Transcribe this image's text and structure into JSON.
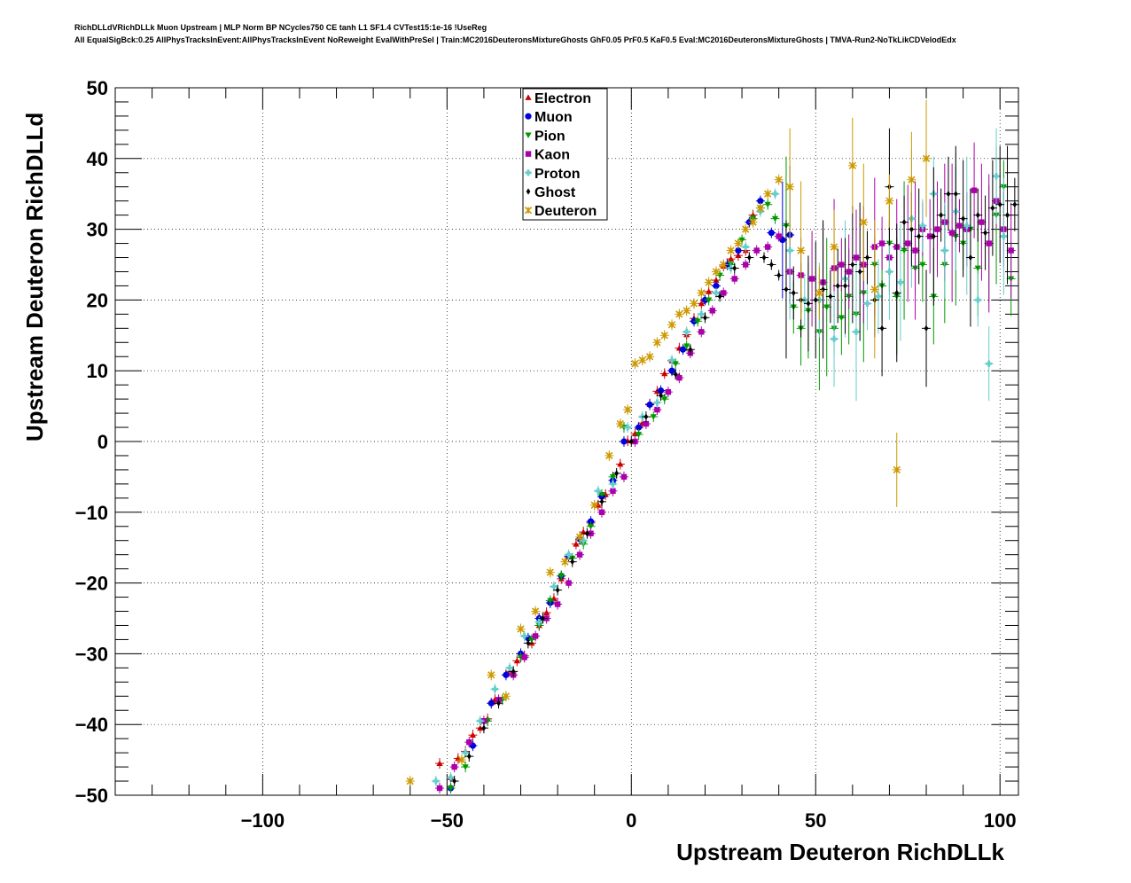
{
  "header": {
    "title_line1": "RichDLLdVRichDLLk Muon Upstream | MLP Norm BP NCycles750 CE tanh L1 SF1.4 CVTest15:1e-16 !UseReg",
    "title_line2": "All EqualSigBck:0.25 AllPhysTracksInEvent:AllPhysTracksInEvent NoReweight EvalWithPreSel | Train:MC2016DeuteronsMixtureGhosts GhF0.05 PrF0.5 KaF0.5 Eval:MC2016DeuteronsMixtureGhosts | TMVA-Run2-NoTkLikCDVelodEdx"
  },
  "chart_data": {
    "type": "scatter",
    "title": "",
    "xlabel": "Upstream Deuteron RichDLLk",
    "ylabel": "Upstream Deuteron RichDLLd",
    "xlim": [
      -140,
      105
    ],
    "ylim": [
      -50,
      50
    ],
    "xticks": [
      -100,
      -50,
      0,
      50,
      100
    ],
    "yticks": [
      -50,
      -40,
      -30,
      -20,
      -10,
      0,
      10,
      20,
      30,
      40,
      50
    ],
    "xtick_labels": [
      "−100",
      "−50",
      "0",
      "50",
      "100"
    ],
    "ytick_labels": [
      "−50",
      "−40",
      "−30",
      "−20",
      "−10",
      "0",
      "10",
      "20",
      "30",
      "40",
      "50"
    ],
    "grid": true,
    "legend_position": "top-center",
    "series": [
      {
        "name": "Electron",
        "color": "#cc0000",
        "marker": "triangle-up",
        "x": [
          -52,
          -49,
          -47,
          -45,
          -43,
          -41,
          -39,
          -37,
          -33,
          -31,
          -29,
          -27,
          -25,
          -23,
          -21,
          -19,
          -17,
          -15,
          -13,
          -11,
          -9,
          -7,
          -5,
          -3,
          -1,
          1,
          3,
          5,
          7,
          9,
          11,
          13,
          15,
          17,
          19,
          21,
          23,
          25,
          27,
          29,
          31,
          33
        ],
        "y": [
          -45.5,
          -47.5,
          -44.8,
          -43.8,
          -41.5,
          -40.5,
          -39.2,
          -36.5,
          -32.5,
          -31.0,
          -30.3,
          -28.5,
          -26.0,
          -24.2,
          -22.2,
          -19.4,
          -16.3,
          -14.5,
          -12.8,
          -11.5,
          -9.0,
          -7.5,
          -5.5,
          -3.2,
          0.1,
          1.1,
          2.6,
          5.3,
          7.1,
          9.6,
          11.4,
          13.2,
          15.1,
          17.4,
          19.5,
          21.2,
          22.8,
          24.8,
          25.8,
          26.3,
          27.0,
          32.0
        ]
      },
      {
        "name": "Muon",
        "color": "#0000dd",
        "marker": "circle",
        "x": [
          -49,
          -43,
          -38,
          -34,
          -30,
          -28,
          -25,
          -22,
          -19,
          -17,
          -14,
          -11,
          -8,
          -5,
          -2,
          2,
          5,
          8,
          11,
          14,
          17,
          20,
          23,
          26,
          29,
          32,
          35,
          38,
          41,
          43
        ],
        "y": [
          -49.0,
          -43.0,
          -37.0,
          -33.0,
          -30.0,
          -27.8,
          -25.0,
          -22.8,
          -19.0,
          -16.2,
          -13.8,
          -11.3,
          -7.8,
          -5.5,
          0.0,
          2.0,
          5.2,
          7.2,
          10.0,
          13.0,
          17.0,
          20.0,
          22.0,
          25.0,
          27.0,
          31.0,
          34.0,
          29.5,
          28.5,
          29.2
        ]
      },
      {
        "name": "Pion",
        "color": "#009900",
        "marker": "triangle-down",
        "x": [
          -49,
          -45,
          -39,
          -35,
          -30,
          -27,
          -25,
          -22,
          -19,
          -16,
          -13,
          -11,
          -8,
          -5,
          -2,
          2,
          6,
          9,
          12,
          15,
          18,
          21,
          24,
          27,
          30,
          33,
          35,
          37,
          39,
          42,
          44,
          46,
          48,
          51,
          53,
          55,
          57,
          59,
          61,
          63,
          66,
          68,
          70,
          72,
          74,
          77,
          79,
          82,
          85,
          88,
          90,
          92,
          94,
          97,
          99,
          101,
          103
        ],
        "y": [
          -49.0,
          -46.0,
          -39.5,
          -36.5,
          -30.5,
          -28.0,
          -26.0,
          -22.5,
          -19.0,
          -16.5,
          -14.5,
          -12.0,
          -7.5,
          -5.0,
          2.0,
          1.0,
          3.5,
          6.0,
          11.0,
          13.5,
          17.0,
          20.0,
          23.5,
          25.0,
          28.5,
          31.5,
          33.0,
          33.5,
          31.5,
          30.5,
          19.0,
          16.0,
          18.5,
          15.5,
          19.0,
          16.0,
          17.5,
          20.5,
          18.0,
          21.0,
          25.0,
          22.0,
          28.0,
          20.5,
          27.0,
          24.5,
          25.0,
          20.5,
          25.0,
          29.0,
          28.0,
          30.0,
          24.5,
          28.0,
          32.0,
          36.0,
          23.0
        ]
      },
      {
        "name": "Kaon",
        "color": "#aa00aa",
        "marker": "square",
        "x": [
          -52,
          -48,
          -44,
          -40,
          -36,
          -32,
          -29,
          -26,
          -23,
          -20,
          -17,
          -14,
          -11,
          -8,
          -5,
          -2,
          1,
          4,
          7,
          10,
          13,
          16,
          19,
          22,
          25,
          28,
          31,
          34,
          37,
          40,
          43,
          46,
          49,
          52,
          55,
          57,
          59,
          61,
          63,
          66,
          68,
          70,
          72,
          75,
          77,
          79,
          81,
          83,
          85,
          87,
          89,
          91,
          93,
          95,
          97,
          99,
          101,
          103
        ],
        "y": [
          -49.0,
          -46.0,
          -42.5,
          -39.5,
          -36.5,
          -33.0,
          -30.5,
          -27.5,
          -25.0,
          -23.0,
          -20.0,
          -16.0,
          -13.0,
          -10.0,
          -7.0,
          -5.0,
          0.0,
          2.5,
          4.5,
          7.0,
          9.0,
          12.5,
          15.5,
          18.5,
          21.0,
          23.0,
          25.0,
          27.0,
          27.5,
          29.0,
          24.0,
          23.5,
          23.0,
          22.5,
          24.5,
          25.0,
          24.0,
          26.0,
          25.0,
          27.5,
          28.0,
          26.0,
          27.5,
          28.0,
          27.0,
          30.0,
          29.0,
          30.0,
          31.0,
          29.5,
          30.5,
          30.0,
          35.5,
          31.0,
          28.0,
          34.0,
          30.0,
          27.0
        ]
      },
      {
        "name": "Proton",
        "color": "#66cccc",
        "marker": "cross",
        "x": [
          -53,
          -49,
          -45,
          -41,
          -37,
          -33,
          -29,
          -25,
          -21,
          -17,
          -13,
          -9,
          -5,
          -1,
          3,
          7,
          11,
          15,
          19,
          23,
          27,
          31,
          35,
          39,
          43,
          47,
          51,
          55,
          58,
          61,
          64,
          67,
          70,
          73,
          76,
          79,
          82,
          85,
          88,
          91,
          94,
          97,
          99,
          101
        ],
        "y": [
          -48.0,
          -47.5,
          -44.0,
          -39.5,
          -35.0,
          -32.0,
          -27.5,
          -25.5,
          -20.5,
          -16.0,
          -14.0,
          -7.0,
          -6.0,
          2.0,
          3.5,
          5.5,
          11.5,
          15.5,
          18.0,
          21.0,
          24.5,
          27.5,
          32.5,
          35.0,
          27.0,
          20.0,
          20.0,
          14.5,
          23.0,
          15.5,
          19.5,
          20.5,
          24.0,
          22.5,
          31.5,
          30.5,
          35.0,
          27.0,
          32.5,
          30.5,
          20.0,
          11.0,
          37.5,
          29.0
        ]
      },
      {
        "name": "Ghost",
        "color": "#000000",
        "marker": "diamond",
        "x": [
          -48,
          -44,
          -40,
          -36,
          -32,
          -28,
          -24,
          -20,
          -16,
          -12,
          -8,
          -4,
          0,
          4,
          8,
          12,
          16,
          20,
          24,
          28,
          32,
          36,
          38,
          40,
          42,
          44,
          46,
          48,
          50,
          52,
          54,
          56,
          58,
          60,
          62,
          64,
          66,
          68,
          70,
          72,
          74,
          76,
          78,
          80,
          82,
          84,
          86,
          88,
          90,
          92,
          94,
          96,
          98,
          100,
          102,
          104
        ],
        "y": [
          -48.0,
          -44.5,
          -40.5,
          -37.0,
          -32.5,
          -28.5,
          -25.0,
          -21.0,
          -17.0,
          -13.0,
          -8.5,
          -4.5,
          0.0,
          3.5,
          6.5,
          9.5,
          13.0,
          17.5,
          20.5,
          24.5,
          26.0,
          26.0,
          25.0,
          23.5,
          21.5,
          21.0,
          20.0,
          19.5,
          20.0,
          21.5,
          20.5,
          22.0,
          22.0,
          25.0,
          24.0,
          26.0,
          20.0,
          16.0,
          36.0,
          21.0,
          31.0,
          30.0,
          29.0,
          16.0,
          29.0,
          32.0,
          35.0,
          35.0,
          31.5,
          26.0,
          32.0,
          29.5,
          33.0,
          33.5,
          32.0,
          33.5
        ]
      },
      {
        "name": "Deuteron",
        "color": "#cc9900",
        "marker": "star",
        "x": [
          -60,
          -46,
          -38,
          -34,
          -30,
          -26,
          -22,
          -18,
          -14,
          -10,
          -6,
          -3,
          -1,
          1,
          3,
          5,
          7,
          9,
          11,
          13,
          15,
          17,
          19,
          21,
          23,
          25,
          27,
          29,
          31,
          33,
          35,
          37,
          40,
          43,
          46,
          51,
          55,
          60,
          63,
          66,
          70,
          72,
          76,
          80
        ],
        "y": [
          -48.0,
          -45.0,
          -33.0,
          -36.0,
          -26.5,
          -24.0,
          -18.5,
          -17.0,
          -13.5,
          -9.0,
          -2.0,
          2.5,
          4.5,
          11.0,
          11.5,
          12.0,
          14.0,
          15.0,
          16.5,
          18.0,
          18.5,
          19.5,
          21.0,
          22.5,
          24.0,
          25.0,
          27.0,
          28.0,
          30.0,
          31.0,
          33.0,
          35.0,
          37.0,
          36.0,
          27.0,
          21.0,
          27.5,
          39.0,
          31.0,
          21.5,
          34.0,
          -4.0,
          37.0,
          40.0
        ]
      }
    ]
  }
}
